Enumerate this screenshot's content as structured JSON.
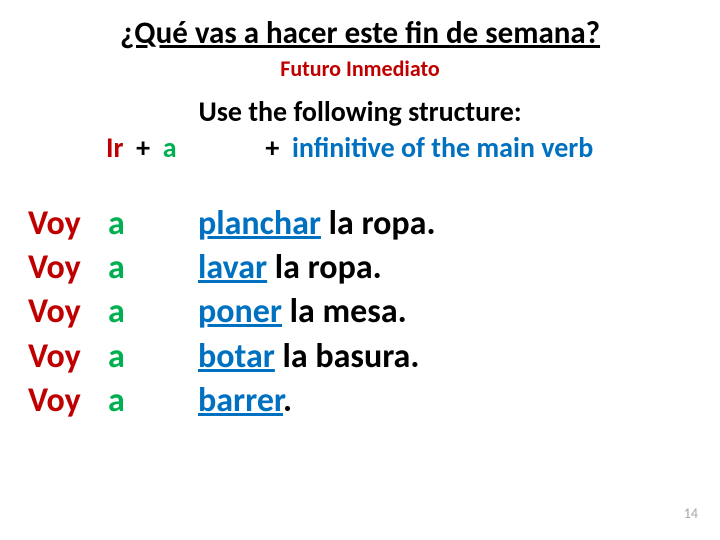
{
  "title": "¿Qué vas a hacer este fin de semana?",
  "subtitle": "Futuro Inmediato",
  "structure_text": "Use the following structure:",
  "formula": {
    "ir": "Ir",
    "plus1": "+",
    "a": "a",
    "plus2": "+",
    "inf": "infinitive of the main verb"
  },
  "colors": {
    "ir": "#c00000",
    "a": "#00b050",
    "inf": "#0070c0",
    "text": "#000000",
    "subtitle": "#c00000",
    "pagenum": "#a6a6a6",
    "background": "#ffffff"
  },
  "typography": {
    "title_size": 31,
    "subtitle_size": 22,
    "structure_size": 28,
    "example_size": 34,
    "pagenum_size": 14,
    "weight": 700
  },
  "examples": [
    {
      "voy": "Voy",
      "a": "a",
      "verb": "planchar",
      "rest": " la ropa."
    },
    {
      "voy": "Voy",
      "a": "a",
      "verb": "lavar",
      "rest": " la ropa."
    },
    {
      "voy": "Voy",
      "a": "a",
      "verb": "poner",
      "rest": " la mesa."
    },
    {
      "voy": "Voy",
      "a": "a",
      "verb": "botar",
      "rest": " la basura."
    },
    {
      "voy": "Voy",
      "a": "a",
      "verb": "barrer",
      "rest": "."
    }
  ],
  "page_number": "14"
}
